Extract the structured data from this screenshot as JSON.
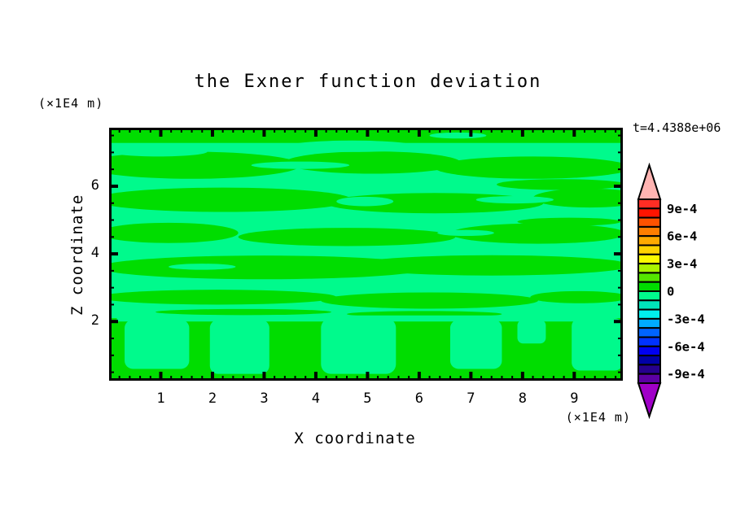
{
  "title": "the Exner function deviation",
  "timestamp_label": "t=4.4388e+06",
  "axes": {
    "x": {
      "label": "X coordinate",
      "unit_label": "(×1E4 m)",
      "min": 0,
      "max": 9.94,
      "major_ticks": [
        1,
        2,
        3,
        4,
        5,
        6,
        7,
        8,
        9
      ],
      "minor_step": 0.2
    },
    "z": {
      "label": "Z coordinate",
      "unit_label": "(×1E4 m)",
      "min": 0.25,
      "max": 7.73,
      "major_ticks": [
        2,
        4,
        6
      ],
      "minor_step": 0.5
    }
  },
  "colorbar": {
    "labels": [
      "9e-4",
      "6e-4",
      "3e-4",
      "0",
      "-3e-4",
      "-6e-4",
      "-9e-4"
    ],
    "value_max": 0.001,
    "value_min": -0.001,
    "segment_interval": 0.0001,
    "segment_colors_top_to_bottom": [
      "#ff2d24",
      "#ff1400",
      "#ff5200",
      "#ff7e00",
      "#ffaa00",
      "#ffd300",
      "#fafa00",
      "#aaf400",
      "#55e600",
      "#00dd00",
      "#00fa8c",
      "#00e4ba",
      "#00eeee",
      "#00aaff",
      "#0064ff",
      "#0032ff",
      "#0000f0",
      "#0000a6",
      "#26008e",
      "#5c00a4"
    ],
    "overflow_top_color": "#ffb4b2",
    "overflow_bottom_color": "#a000c8",
    "outline_color": "#000000"
  },
  "chart_data": {
    "type": "filled-contour",
    "title": "the Exner function deviation",
    "xlabel": "X coordinate",
    "ylabel": "Z coordinate",
    "x_unit": "(×1E4 m)",
    "y_unit": "(×1E4 m)",
    "x_range": [
      0,
      9.94
    ],
    "y_range": [
      0.25,
      7.73
    ],
    "x_major_ticks": [
      1,
      2,
      3,
      4,
      5,
      6,
      7,
      8,
      9
    ],
    "y_major_ticks": [
      2,
      4,
      6
    ],
    "time_annotation": "t=4.4388e+06",
    "contour_interval": 0.0001,
    "legend_position": "right",
    "grid": false,
    "value_bands_visible": [
      {
        "band": "0 to 1e-4",
        "color": "#00dd00",
        "description": "weak positive deviation streaks"
      },
      {
        "band": "-1e-4 to 0",
        "color": "#00fa8c",
        "description": "weak negative deviation background"
      }
    ],
    "field": {
      "background_color": "#00fa8c",
      "positive_color": "#00dd00",
      "positive_regions": [
        {
          "t": "rect",
          "x": 0,
          "z": 7.28,
          "w": 9.94,
          "h": 0.45
        },
        {
          "t": "ell",
          "cx": 1.6,
          "cz": 6.62,
          "rx": 2.1,
          "rz": 0.4
        },
        {
          "t": "ell",
          "cx": 5.1,
          "cz": 6.7,
          "rx": 1.7,
          "rz": 0.33
        },
        {
          "t": "ell",
          "cx": 8.2,
          "cz": 6.55,
          "rx": 1.9,
          "rz": 0.33
        },
        {
          "t": "ell",
          "cx": 8.75,
          "cz": 6.05,
          "rx": 1.25,
          "rz": 0.16
        },
        {
          "t": "ell",
          "cx": 2.2,
          "cz": 5.6,
          "rx": 2.5,
          "rz": 0.36
        },
        {
          "t": "ell",
          "cx": 6.3,
          "cz": 5.5,
          "rx": 2.1,
          "rz": 0.3
        },
        {
          "t": "ell",
          "cx": 9.3,
          "cz": 5.65,
          "rx": 1.1,
          "rz": 0.28
        },
        {
          "t": "ell",
          "cx": 8.9,
          "cz": 4.95,
          "rx": 1.0,
          "rz": 0.12
        },
        {
          "t": "ell",
          "cx": 1.15,
          "cz": 4.62,
          "rx": 1.35,
          "rz": 0.3
        },
        {
          "t": "ell",
          "cx": 4.6,
          "cz": 4.5,
          "rx": 2.1,
          "rz": 0.27
        },
        {
          "t": "ell",
          "cx": 8.3,
          "cz": 4.6,
          "rx": 1.7,
          "rz": 0.3
        },
        {
          "t": "ell",
          "cx": 3.0,
          "cz": 3.6,
          "rx": 3.2,
          "rz": 0.35
        },
        {
          "t": "ell",
          "cx": 7.4,
          "cz": 3.66,
          "rx": 2.7,
          "rz": 0.3
        },
        {
          "t": "ell",
          "cx": 2.1,
          "cz": 2.72,
          "rx": 2.3,
          "rz": 0.22
        },
        {
          "t": "ell",
          "cx": 6.2,
          "cz": 2.62,
          "rx": 2.1,
          "rz": 0.24
        },
        {
          "t": "ell",
          "cx": 9.1,
          "cz": 2.72,
          "rx": 0.95,
          "rz": 0.18
        },
        {
          "t": "ell",
          "cx": 2.6,
          "cz": 2.28,
          "rx": 1.7,
          "rz": 0.09
        },
        {
          "t": "ell",
          "cx": 6.1,
          "cz": 2.22,
          "rx": 1.5,
          "rz": 0.09
        },
        {
          "t": "rect",
          "x": 0,
          "z": 0.25,
          "w": 9.94,
          "h": 1.85
        }
      ],
      "negative_overlays": [
        {
          "t": "ell",
          "cx": 4.7,
          "cz": 7.18,
          "rx": 1.25,
          "rz": 0.17
        },
        {
          "t": "ell",
          "cx": 0.95,
          "cz": 7.02,
          "rx": 0.95,
          "rz": 0.14
        },
        {
          "t": "ell",
          "cx": 6.75,
          "cz": 7.5,
          "rx": 0.55,
          "rz": 0.09
        },
        {
          "t": "ell",
          "cx": 8.6,
          "cz": 7.08,
          "rx": 0.85,
          "rz": 0.13
        },
        {
          "t": "ell",
          "cx": 3.7,
          "cz": 6.62,
          "rx": 0.95,
          "rz": 0.11
        },
        {
          "t": "ell",
          "cx": 7.85,
          "cz": 5.6,
          "rx": 0.75,
          "rz": 0.11
        },
        {
          "t": "ell",
          "cx": 4.95,
          "cz": 5.55,
          "rx": 0.55,
          "rz": 0.14
        },
        {
          "t": "ell",
          "cx": 1.8,
          "cz": 3.62,
          "rx": 0.65,
          "rz": 0.09
        },
        {
          "t": "ell",
          "cx": 6.9,
          "cz": 4.62,
          "rx": 0.55,
          "rz": 0.09
        },
        {
          "t": "rect",
          "x": 0.15,
          "z": 2.0,
          "w": 9.6,
          "h": 0.18
        },
        {
          "t": "rect",
          "x": 0.3,
          "z": 0.6,
          "w": 1.25,
          "h": 1.45,
          "r": 10
        },
        {
          "t": "rect",
          "x": 1.95,
          "z": 0.45,
          "w": 1.15,
          "h": 1.6,
          "r": 10
        },
        {
          "t": "rect",
          "x": 4.1,
          "z": 0.45,
          "w": 1.45,
          "h": 1.65,
          "r": 12
        },
        {
          "t": "rect",
          "x": 6.6,
          "z": 0.6,
          "w": 1.0,
          "h": 1.45,
          "r": 10
        },
        {
          "t": "rect",
          "x": 7.9,
          "z": 1.35,
          "w": 0.55,
          "h": 0.7,
          "r": 7
        },
        {
          "t": "rect",
          "x": 8.95,
          "z": 0.55,
          "w": 0.99,
          "h": 1.55,
          "r": 10
        }
      ]
    }
  }
}
